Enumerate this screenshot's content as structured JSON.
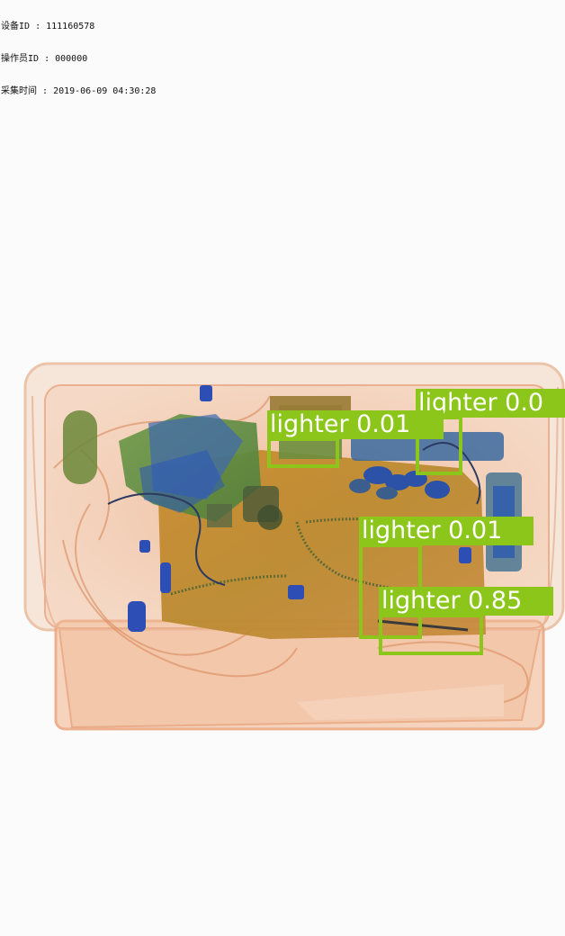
{
  "meta": {
    "device_label": "设备ID",
    "device_id": "111160578",
    "operator_label": "操作员ID",
    "operator_id": "000000",
    "time_label": "采集时间",
    "time_value": "2019-06-09 04:30:28",
    "separator": " : "
  },
  "detection_color": "#8cc61a",
  "detections": [
    {
      "label": "lighter",
      "score": "0.0",
      "text": "lighter 0.0"
    },
    {
      "label": "lighter",
      "score": "0.01",
      "text": "lighter 0.01"
    },
    {
      "label": "lighter",
      "score": "0.01",
      "text": "lighter 0.01"
    },
    {
      "label": "lighter",
      "score": "0.85",
      "text": "lighter 0.85"
    }
  ]
}
